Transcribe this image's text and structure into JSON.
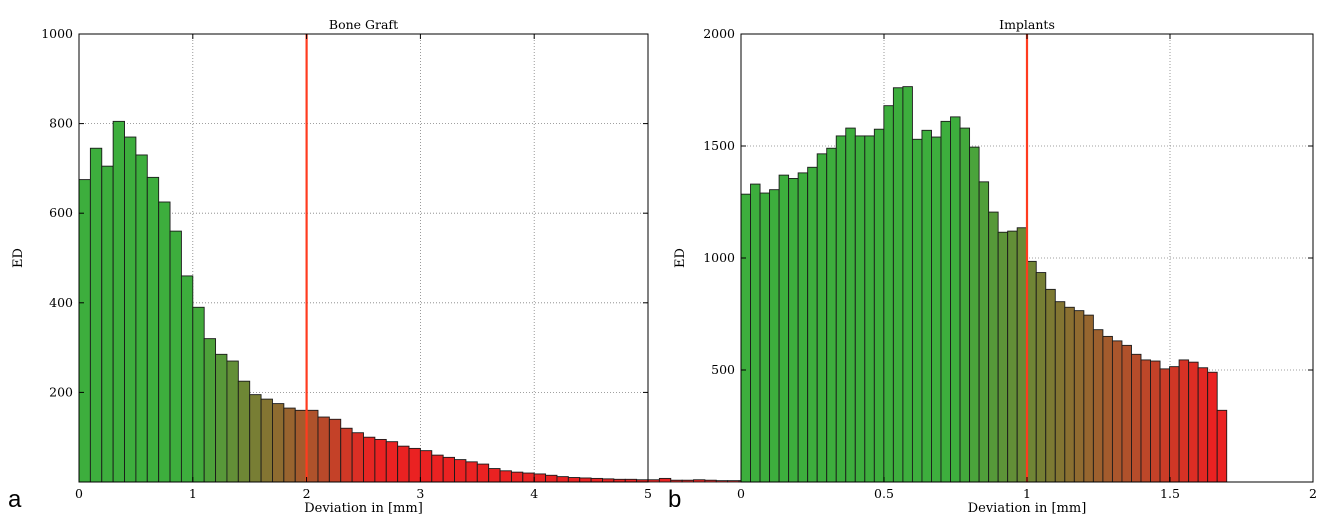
{
  "chart_data": [
    {
      "type": "bar",
      "panel_label": "a",
      "title": "Bone Graft",
      "xlabel": "Deviation in [mm]",
      "ylabel": "ED",
      "xlim": [
        0,
        5
      ],
      "ylim": [
        0,
        1000
      ],
      "xticks": [
        "0",
        "1",
        "2",
        "3",
        "4",
        "5"
      ],
      "yticks": [
        "200",
        "400",
        "600",
        "800",
        "1000"
      ],
      "grid": "horizontal dotted",
      "bin_start": 0,
      "bin_width": 0.1,
      "values": [
        675,
        745,
        705,
        805,
        770,
        730,
        680,
        625,
        560,
        460,
        390,
        320,
        285,
        270,
        225,
        195,
        185,
        175,
        165,
        160,
        160,
        145,
        140,
        120,
        110,
        100,
        95,
        90,
        80,
        75,
        70,
        60,
        55,
        50,
        45,
        40,
        30,
        25,
        22,
        20,
        18,
        15,
        12,
        10,
        9,
        8,
        7,
        6,
        6,
        5,
        5,
        8,
        4,
        4,
        5,
        4,
        3,
        3,
        3,
        2
      ],
      "reference_line_x": 2,
      "colors": {
        "low": "#3dae3d",
        "high": "#ea2222",
        "reference_line": "#ff3b1f"
      }
    },
    {
      "type": "bar",
      "panel_label": "b",
      "title": "Implants",
      "xlabel": "Deviation in [mm]",
      "ylabel": "ED",
      "xlim": [
        0,
        2
      ],
      "ylim": [
        0,
        2000
      ],
      "xticks": [
        "0",
        "0.5",
        "1",
        "1.5",
        "2"
      ],
      "yticks": [
        "500",
        "1000",
        "1500",
        "2000"
      ],
      "grid": "horizontal dotted",
      "bin_start": 0,
      "bin_width": 0.0333,
      "values": [
        1285,
        1330,
        1290,
        1305,
        1370,
        1355,
        1380,
        1405,
        1465,
        1490,
        1545,
        1580,
        1545,
        1545,
        1575,
        1680,
        1760,
        1765,
        1530,
        1570,
        1540,
        1610,
        1630,
        1580,
        1495,
        1340,
        1205,
        1115,
        1120,
        1135,
        985,
        935,
        860,
        805,
        780,
        765,
        745,
        680,
        650,
        630,
        610,
        570,
        545,
        540,
        505,
        515,
        545,
        535,
        510,
        490,
        320
      ],
      "reference_line_x": 1,
      "colors": {
        "low": "#3dae3d",
        "high": "#ea2222",
        "reference_line": "#ff3b1f"
      }
    }
  ]
}
